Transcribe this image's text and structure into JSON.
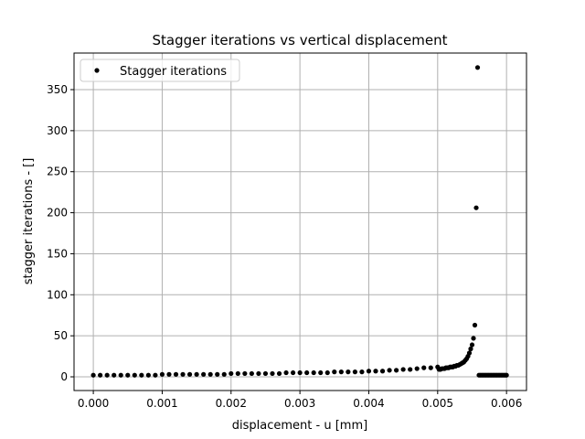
{
  "chart_data": {
    "type": "scatter",
    "title": "Stagger iterations vs vertical displacement",
    "xlabel": "displacement - u [mm]",
    "ylabel": "stagger iterations - []",
    "xlim": [
      -0.00028,
      0.00629
    ],
    "ylim": [
      -16.7,
      394.6
    ],
    "xticks": [
      {
        "value": 0,
        "label": "0.000"
      },
      {
        "value": 0.001,
        "label": "0.001"
      },
      {
        "value": 0.002,
        "label": "0.002"
      },
      {
        "value": 0.003,
        "label": "0.003"
      },
      {
        "value": 0.004,
        "label": "0.004"
      },
      {
        "value": 0.005,
        "label": "0.005"
      },
      {
        "value": 0.006,
        "label": "0.006"
      }
    ],
    "yticks": [
      0,
      50,
      100,
      150,
      200,
      250,
      300,
      350
    ],
    "grid": true,
    "legend": "upper left",
    "series": [
      {
        "name": "Stagger iterations",
        "color": "#000000",
        "x": [
          0,
          0.0001,
          0.0002,
          0.0003,
          0.0004,
          0.0005,
          0.0006,
          0.0007,
          0.0008,
          0.0009,
          0.001,
          0.0011,
          0.0012,
          0.0013,
          0.0014,
          0.0015,
          0.0016,
          0.0017,
          0.0018,
          0.0019,
          0.002,
          0.0021,
          0.0022,
          0.0023,
          0.0024,
          0.0025,
          0.0026,
          0.0027,
          0.0028,
          0.0029,
          0.003,
          0.0031,
          0.0032,
          0.0033,
          0.0034,
          0.0035,
          0.0036,
          0.0037,
          0.0038,
          0.0039,
          0.004,
          0.0041,
          0.0042,
          0.0043,
          0.0044,
          0.0045,
          0.0046,
          0.0047,
          0.0048,
          0.0049,
          0.005,
          0.00502,
          0.00504,
          0.00506,
          0.00508,
          0.0051,
          0.00512,
          0.00514,
          0.00516,
          0.00518,
          0.0052,
          0.00522,
          0.00524,
          0.00526,
          0.00528,
          0.0053,
          0.00532,
          0.00534,
          0.00536,
          0.00538,
          0.0054,
          0.00542,
          0.00544,
          0.00546,
          0.00548,
          0.0055,
          0.00552,
          0.00554,
          0.00556,
          0.00558,
          0.0056,
          0.00562,
          0.00564,
          0.00566,
          0.00568,
          0.0057,
          0.00572,
          0.00574,
          0.00576,
          0.00578,
          0.0058,
          0.00582,
          0.00584,
          0.00586,
          0.00588,
          0.0059,
          0.00592,
          0.00594,
          0.00596,
          0.00598,
          0.006
        ],
        "values": [
          2,
          2,
          2,
          2,
          2,
          2,
          2,
          2,
          2,
          2,
          3,
          3,
          3,
          3,
          3,
          3,
          3,
          3,
          3,
          3,
          4,
          4,
          4,
          4,
          4,
          4,
          4,
          4,
          5,
          5,
          5,
          5,
          5,
          5,
          5,
          6,
          6,
          6,
          6,
          6,
          7,
          7,
          7,
          8,
          8,
          9,
          9,
          10,
          11,
          11,
          12,
          9,
          9,
          10,
          10,
          10,
          11,
          11,
          11,
          12,
          12,
          12,
          13,
          13,
          14,
          14,
          15,
          16,
          17,
          18,
          20,
          22,
          25,
          29,
          34,
          39,
          47,
          63,
          206,
          377,
          2,
          2,
          2,
          2,
          2,
          2,
          2,
          2,
          2,
          2,
          2,
          2,
          2,
          2,
          2,
          2,
          2,
          2,
          2,
          2,
          2
        ]
      }
    ]
  }
}
